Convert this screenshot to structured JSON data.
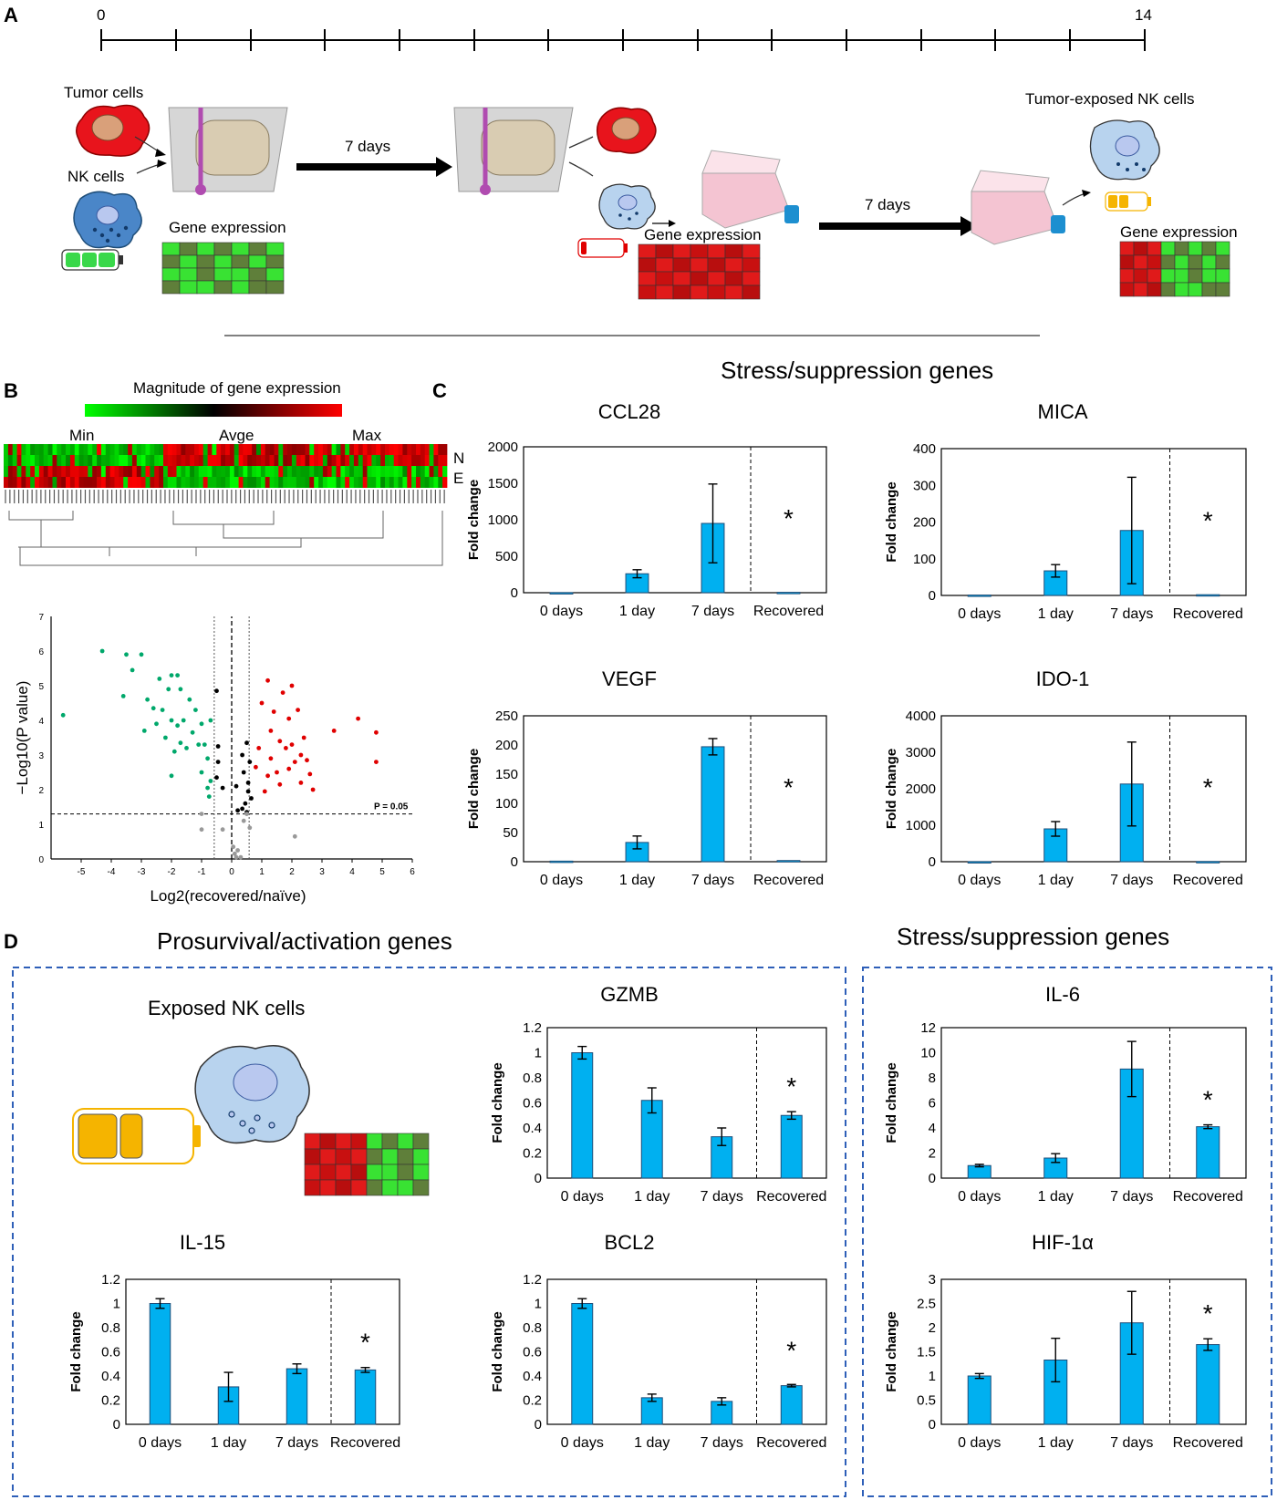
{
  "panel_labels": {
    "a": "A",
    "b": "B",
    "c": "C",
    "d": "D"
  },
  "panel_a": {
    "timeline_start": "0",
    "timeline_end": "14",
    "tumor_cells": "Tumor cells",
    "nk_cells": "NK cells",
    "gene_expression": "Gene expression",
    "days_1": "7 days",
    "days_2": "7 days",
    "tumor_exposed": "Tumor-exposed NK cells"
  },
  "panel_b": {
    "heatmap_title": "Magnitude of gene expression",
    "legend_min": "Min",
    "legend_avg": "Avge",
    "legend_max": "Max",
    "row_n": "N",
    "row_e": "E",
    "volcano": {
      "ylabel": "−Log10(P value)",
      "xlabel": "Log2(recovered/naïve)",
      "p_label": "P = 0.05",
      "xticks": [
        "-5",
        "-4",
        "-3",
        "-2",
        "-1",
        "0",
        "1",
        "2",
        "3",
        "4",
        "5",
        "6"
      ],
      "yticks": [
        "0",
        "1",
        "2",
        "3",
        "4",
        "5",
        "6",
        "7"
      ],
      "colors": {
        "down": "#00a86b",
        "up": "#e00000",
        "ns_sig": "#000000",
        "nonsig": "#999999"
      },
      "points_green": [
        [
          -5.6,
          4.15
        ],
        [
          -4.3,
          6.0
        ],
        [
          -3.6,
          4.7
        ],
        [
          -3.5,
          5.9
        ],
        [
          -3.3,
          5.45
        ],
        [
          -3.0,
          5.9
        ],
        [
          -2.8,
          4.6
        ],
        [
          -2.6,
          4.35
        ],
        [
          -2.5,
          3.9
        ],
        [
          -2.4,
          5.2
        ],
        [
          -2.3,
          4.3
        ],
        [
          -2.2,
          3.5
        ],
        [
          -2.1,
          4.9
        ],
        [
          -2.0,
          5.3
        ],
        [
          -2.0,
          4.0
        ],
        [
          -1.9,
          3.1
        ],
        [
          -1.8,
          5.3
        ],
        [
          -1.8,
          3.85
        ],
        [
          -1.7,
          4.9
        ],
        [
          -1.7,
          3.35
        ],
        [
          -1.6,
          4.0
        ],
        [
          -1.5,
          3.2
        ],
        [
          -1.4,
          4.6
        ],
        [
          -1.3,
          3.65
        ],
        [
          -1.2,
          4.3
        ],
        [
          -1.1,
          3.3
        ],
        [
          -1.0,
          3.9
        ],
        [
          -1.0,
          2.5
        ],
        [
          -0.9,
          3.3
        ],
        [
          -0.8,
          2.9
        ],
        [
          -0.8,
          2.05
        ],
        [
          -0.75,
          1.8
        ],
        [
          -0.7,
          4.0
        ],
        [
          -0.7,
          2.25
        ],
        [
          -2.0,
          2.4
        ],
        [
          -2.9,
          3.7
        ]
      ],
      "points_red": [
        [
          1.0,
          4.5
        ],
        [
          1.1,
          1.95
        ],
        [
          1.2,
          2.4
        ],
        [
          1.3,
          3.7
        ],
        [
          1.3,
          2.9
        ],
        [
          1.4,
          4.25
        ],
        [
          1.5,
          2.5
        ],
        [
          1.6,
          2.15
        ],
        [
          1.6,
          3.4
        ],
        [
          1.7,
          4.8
        ],
        [
          1.8,
          3.2
        ],
        [
          1.9,
          4.05
        ],
        [
          1.9,
          2.6
        ],
        [
          2.0,
          5.0
        ],
        [
          2.0,
          3.3
        ],
        [
          2.1,
          2.8
        ],
        [
          2.2,
          4.3
        ],
        [
          2.3,
          3.0
        ],
        [
          2.3,
          2.2
        ],
        [
          2.4,
          3.5
        ],
        [
          2.5,
          2.85
        ],
        [
          2.6,
          2.45
        ],
        [
          2.7,
          2.0
        ],
        [
          1.2,
          5.15
        ],
        [
          3.4,
          3.7
        ],
        [
          4.2,
          4.05
        ],
        [
          4.8,
          3.65
        ],
        [
          4.8,
          2.8
        ],
        [
          0.9,
          3.2
        ],
        [
          0.8,
          2.65
        ]
      ],
      "points_black": [
        [
          -0.5,
          4.85
        ],
        [
          -0.5,
          2.35
        ],
        [
          -0.45,
          2.8
        ],
        [
          -0.45,
          3.25
        ],
        [
          -0.3,
          2.05
        ],
        [
          0.15,
          2.1
        ],
        [
          0.2,
          1.4
        ],
        [
          0.35,
          3.0
        ],
        [
          0.4,
          2.5
        ],
        [
          0.45,
          1.6
        ],
        [
          0.5,
          3.35
        ],
        [
          0.55,
          1.95
        ],
        [
          0.6,
          2.8
        ],
        [
          0.65,
          1.75
        ],
        [
          0.55,
          2.2
        ],
        [
          0.5,
          1.35
        ],
        [
          0.35,
          1.45
        ]
      ],
      "points_grey": [
        [
          -1.0,
          0.85
        ],
        [
          -1.0,
          1.3
        ],
        [
          -0.3,
          0.85
        ],
        [
          0.05,
          0.35
        ],
        [
          0.1,
          0.15
        ],
        [
          0.15,
          0.05
        ],
        [
          0.2,
          0.25
        ],
        [
          0.3,
          0.05
        ],
        [
          0.4,
          1.1
        ],
        [
          0.5,
          1.3
        ],
        [
          0.6,
          0.9
        ],
        [
          2.1,
          0.65
        ]
      ]
    }
  },
  "panel_c": {
    "header": "Stress/suppression genes"
  },
  "panel_d": {
    "header_left": "Prosurvival/activation genes",
    "header_right": "Stress/suppression genes",
    "exposed_label": "Exposed NK cells"
  },
  "chart_data": [
    {
      "type": "bar",
      "title": "CCL28",
      "categories": [
        "0 days",
        "1 day",
        "7 days",
        "Recovered"
      ],
      "values": [
        1,
        260,
        950,
        5
      ],
      "errors": [
        0,
        55,
        540,
        0
      ],
      "ylabel": "Fold change",
      "ylim": [
        0,
        2000
      ],
      "yticks": [
        "0",
        "500",
        "1000",
        "1500",
        "2000"
      ],
      "star": "*"
    },
    {
      "type": "bar",
      "title": "MICA",
      "categories": [
        "0 days",
        "1 day",
        "7 days",
        "Recovered"
      ],
      "values": [
        1,
        67,
        177,
        2
      ],
      "errors": [
        0,
        17,
        145,
        0
      ],
      "ylabel": "Fold change",
      "ylim": [
        0,
        400
      ],
      "yticks": [
        "0",
        "100",
        "200",
        "300",
        "400"
      ],
      "star": "*"
    },
    {
      "type": "bar",
      "title": "VEGF",
      "categories": [
        "0 days",
        "1 day",
        "7 days",
        "Recovered"
      ],
      "values": [
        1,
        33,
        197,
        2
      ],
      "errors": [
        0,
        11,
        14,
        0
      ],
      "ylabel": "Fold change",
      "ylim": [
        0,
        250
      ],
      "yticks": [
        "0",
        "50",
        "100",
        "150",
        "200",
        "250"
      ],
      "star": "*"
    },
    {
      "type": "bar",
      "title": "IDO-1",
      "categories": [
        "0 days",
        "1 day",
        "7 days",
        "Recovered"
      ],
      "values": [
        1,
        900,
        2130,
        5
      ],
      "errors": [
        0,
        200,
        1150,
        0
      ],
      "ylabel": "Fold change",
      "ylim": [
        0,
        4000
      ],
      "yticks": [
        "0",
        "1000",
        "2000",
        "3000",
        "4000"
      ],
      "star": "*"
    },
    {
      "type": "bar",
      "title": "GZMB",
      "categories": [
        "0 days",
        "1 day",
        "7 days",
        "Recovered"
      ],
      "values": [
        1.0,
        0.62,
        0.33,
        0.5
      ],
      "errors": [
        0.05,
        0.1,
        0.07,
        0.03
      ],
      "ylabel": "Fold change",
      "ylim": [
        0,
        1.2
      ],
      "yticks": [
        "0",
        "0.2",
        "0.4",
        "0.6",
        "0.8",
        "1",
        "1.2"
      ],
      "star": "*"
    },
    {
      "type": "bar",
      "title": "IL-6",
      "categories": [
        "0 days",
        "1 day",
        "7 days",
        "Recovered"
      ],
      "values": [
        1.0,
        1.6,
        8.7,
        4.1
      ],
      "errors": [
        0.1,
        0.35,
        2.2,
        0.15
      ],
      "ylabel": "Fold change",
      "ylim": [
        0,
        12
      ],
      "yticks": [
        "0",
        "2",
        "4",
        "6",
        "8",
        "10",
        "12"
      ],
      "star": "*"
    },
    {
      "type": "bar",
      "title": "IL-15",
      "categories": [
        "0 days",
        "1 day",
        "7 days",
        "Recovered"
      ],
      "values": [
        1.0,
        0.31,
        0.46,
        0.45
      ],
      "errors": [
        0.04,
        0.12,
        0.04,
        0.02
      ],
      "ylabel": "Fold change",
      "ylim": [
        0,
        1.2
      ],
      "yticks": [
        "0",
        "0.2",
        "0.4",
        "0.6",
        "0.8",
        "1",
        "1.2"
      ],
      "star": "*"
    },
    {
      "type": "bar",
      "title": "BCL2",
      "categories": [
        "0 days",
        "1 day",
        "7 days",
        "Recovered"
      ],
      "values": [
        1.0,
        0.22,
        0.19,
        0.32
      ],
      "errors": [
        0.04,
        0.03,
        0.03,
        0.01
      ],
      "ylabel": "Fold change",
      "ylim": [
        0,
        1.2
      ],
      "yticks": [
        "0",
        "0.2",
        "0.4",
        "0.6",
        "0.8",
        "1",
        "1.2"
      ],
      "star": "*"
    },
    {
      "type": "bar",
      "title": "HIF-1α",
      "categories": [
        "0 days",
        "1 day",
        "7 days",
        "Recovered"
      ],
      "values": [
        1.0,
        1.33,
        2.1,
        1.65
      ],
      "errors": [
        0.05,
        0.45,
        0.65,
        0.12
      ],
      "ylabel": "Fold change",
      "ylim": [
        0,
        3
      ],
      "yticks": [
        "0",
        "0.5",
        "1",
        "1.5",
        "2",
        "2.5",
        "3"
      ],
      "star": "*"
    }
  ]
}
